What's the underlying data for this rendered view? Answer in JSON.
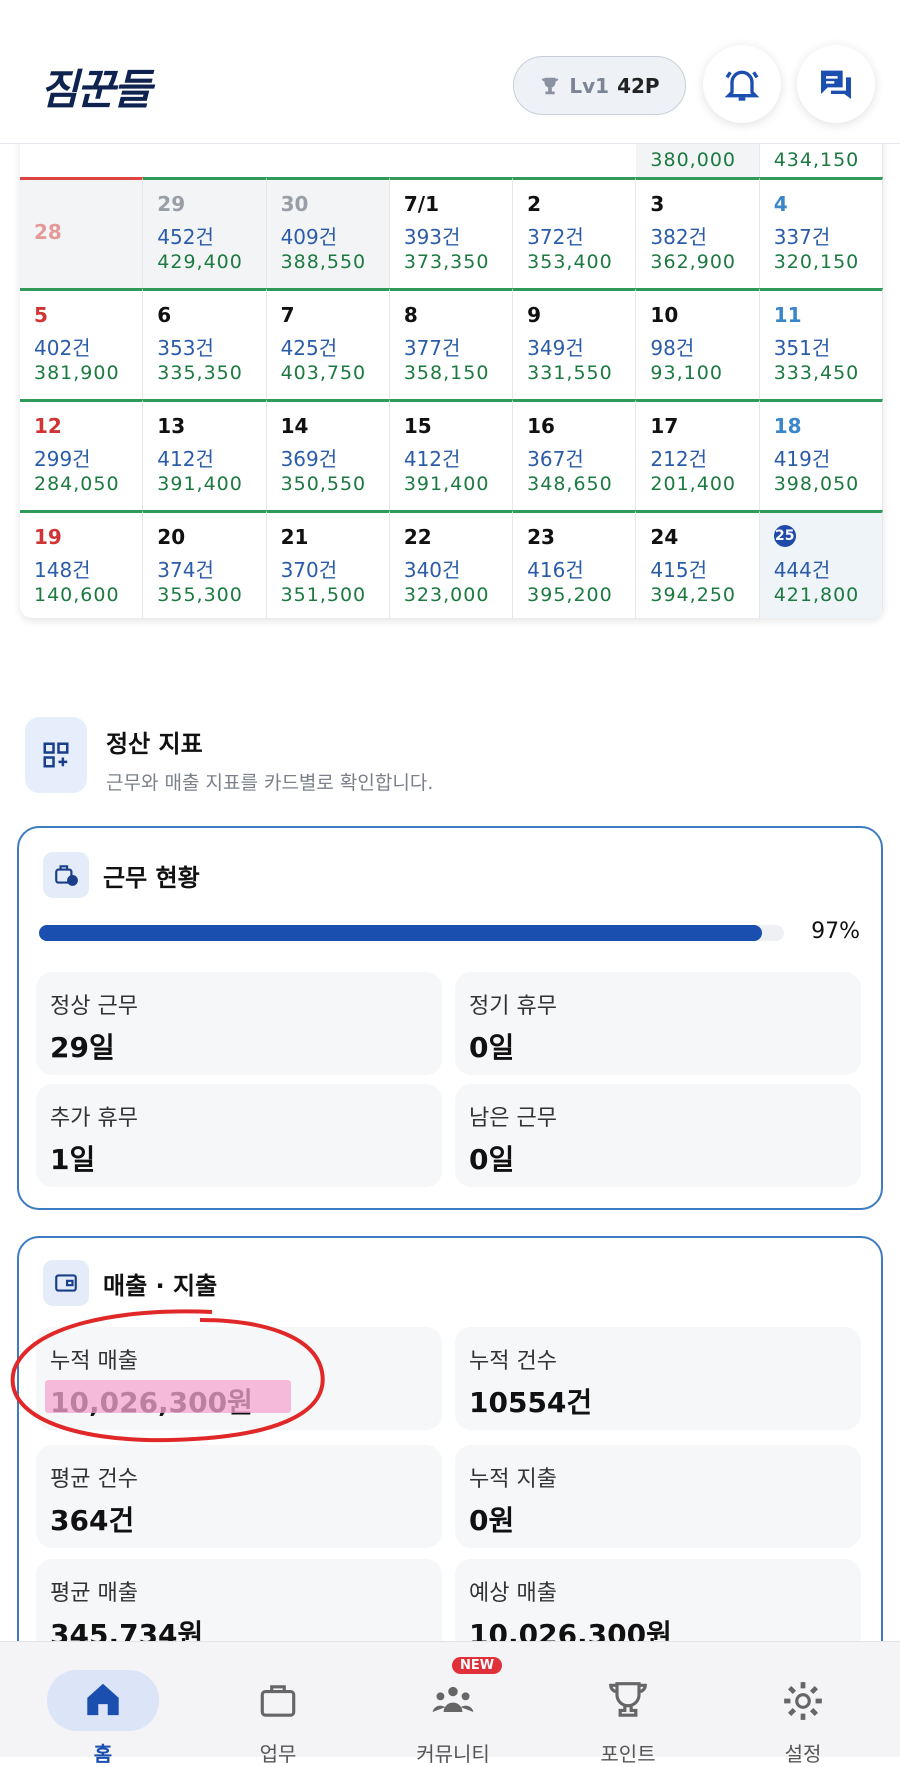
{
  "header": {
    "logo": "짐꾼들",
    "level": "Lv1",
    "points": "42P"
  },
  "calendar": {
    "partial_row": [
      "380,000",
      "434,150"
    ],
    "weeks": [
      [
        {
          "day": "28",
          "count": null,
          "amount": null
        },
        {
          "day": "29",
          "count": "452건",
          "amount": "429,400"
        },
        {
          "day": "30",
          "count": "409건",
          "amount": "388,550"
        },
        {
          "day": "7/1",
          "count": "393건",
          "amount": "373,350"
        },
        {
          "day": "2",
          "count": "372건",
          "amount": "353,400"
        },
        {
          "day": "3",
          "count": "382건",
          "amount": "362,900"
        },
        {
          "day": "4",
          "count": "337건",
          "amount": "320,150"
        }
      ],
      [
        {
          "day": "5",
          "count": "402건",
          "amount": "381,900"
        },
        {
          "day": "6",
          "count": "353건",
          "amount": "335,350"
        },
        {
          "day": "7",
          "count": "425건",
          "amount": "403,750"
        },
        {
          "day": "8",
          "count": "377건",
          "amount": "358,150"
        },
        {
          "day": "9",
          "count": "349건",
          "amount": "331,550"
        },
        {
          "day": "10",
          "count": "98건",
          "amount": "93,100"
        },
        {
          "day": "11",
          "count": "351건",
          "amount": "333,450"
        }
      ],
      [
        {
          "day": "12",
          "count": "299건",
          "amount": "284,050"
        },
        {
          "day": "13",
          "count": "412건",
          "amount": "391,400"
        },
        {
          "day": "14",
          "count": "369건",
          "amount": "350,550"
        },
        {
          "day": "15",
          "count": "412건",
          "amount": "391,400"
        },
        {
          "day": "16",
          "count": "367건",
          "amount": "348,650"
        },
        {
          "day": "17",
          "count": "212건",
          "amount": "201,400"
        },
        {
          "day": "18",
          "count": "419건",
          "amount": "398,050"
        }
      ],
      [
        {
          "day": "19",
          "count": "148건",
          "amount": "140,600"
        },
        {
          "day": "20",
          "count": "374건",
          "amount": "355,300"
        },
        {
          "day": "21",
          "count": "370건",
          "amount": "351,500"
        },
        {
          "day": "22",
          "count": "340건",
          "amount": "323,000"
        },
        {
          "day": "23",
          "count": "416건",
          "amount": "395,200"
        },
        {
          "day": "24",
          "count": "415건",
          "amount": "394,250"
        },
        {
          "day": "25",
          "count": "444건",
          "amount": "421,800"
        }
      ]
    ]
  },
  "section": {
    "title": "정산 지표",
    "subtitle": "근무와 매출 지표를 카드별로 확인합니다."
  },
  "work_card": {
    "title": "근무 현황",
    "progress": 97,
    "progress_label": "97%",
    "items": [
      {
        "label": "정상 근무",
        "value": "29일"
      },
      {
        "label": "정기 휴무",
        "value": "0일"
      },
      {
        "label": "추가 휴무",
        "value": "1일"
      },
      {
        "label": "남은 근무",
        "value": "0일"
      }
    ]
  },
  "sales_card": {
    "title": "매출 · 지출",
    "items": [
      {
        "label": "누적 매출",
        "value": "10,026,300원"
      },
      {
        "label": "누적 건수",
        "value": "10554건"
      },
      {
        "label": "평균 건수",
        "value": "364건"
      },
      {
        "label": "누적 지출",
        "value": "0원"
      },
      {
        "label": "평균 매출",
        "value": "345,734원"
      },
      {
        "label": "예상 매출",
        "value": "10,026,300원"
      }
    ]
  },
  "nav": {
    "items": [
      "홈",
      "업무",
      "커뮤니티",
      "포인트",
      "설정"
    ],
    "badge": "NEW"
  }
}
